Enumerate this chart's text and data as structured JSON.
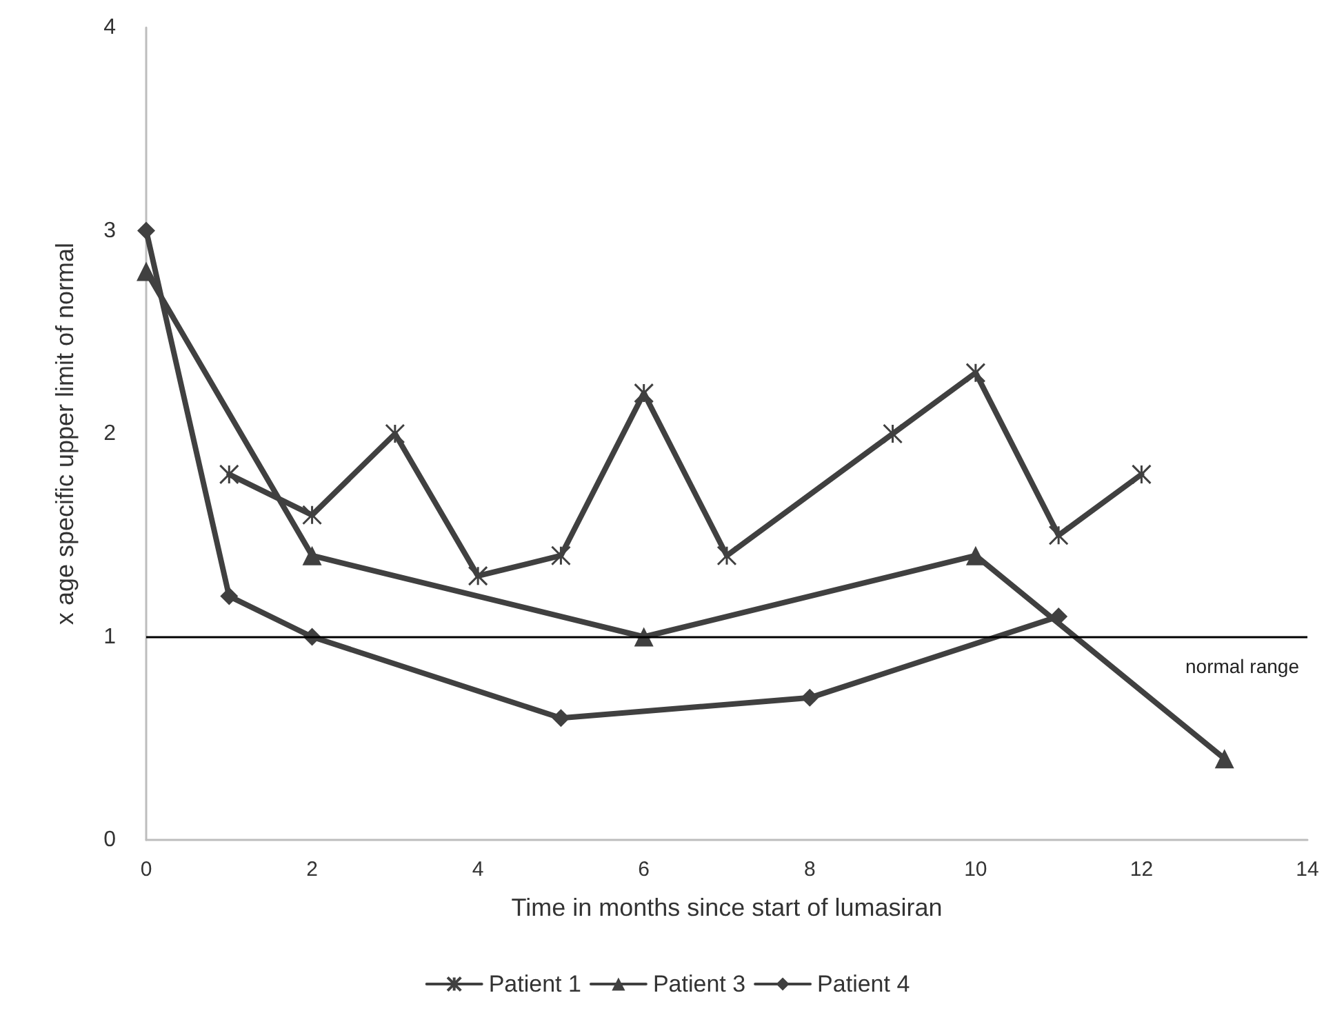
{
  "chart_data": {
    "type": "line",
    "xlabel": "Time in months since start of lumasiran",
    "ylabel": "x age specific upper limit of normal",
    "series": [
      {
        "name": "Patient 1",
        "color": "#404040",
        "marker": "cross",
        "x": [
          1,
          2,
          3,
          4,
          5,
          6,
          7,
          9,
          10,
          11,
          12
        ],
        "values": [
          1.8,
          1.6,
          2.0,
          1.3,
          1.4,
          2.2,
          1.4,
          2.0,
          2.3,
          1.5,
          1.8
        ]
      },
      {
        "name": "Patient 3",
        "color": "#404040",
        "marker": "triangle",
        "x": [
          0,
          2,
          6,
          10,
          13
        ],
        "values": [
          2.8,
          1.4,
          1.0,
          1.4,
          0.4
        ]
      },
      {
        "name": "Patient 4",
        "color": "#404040",
        "marker": "diamond",
        "x": [
          0,
          1,
          2,
          5,
          8,
          11
        ],
        "values": [
          3.0,
          1.2,
          1.0,
          0.6,
          0.7,
          1.1
        ]
      }
    ],
    "xlim": [
      0,
      14
    ],
    "xticks": [
      0,
      2,
      4,
      6,
      8,
      10,
      12,
      14
    ],
    "ylim": [
      0,
      4
    ],
    "yticks": [
      0,
      1,
      2,
      3,
      4
    ],
    "ref_lines": [
      {
        "axis": "y",
        "value": 1,
        "label": "normal range",
        "color": "#000000"
      }
    ],
    "grid": false,
    "legend": "bottom",
    "line_style": "solid"
  }
}
